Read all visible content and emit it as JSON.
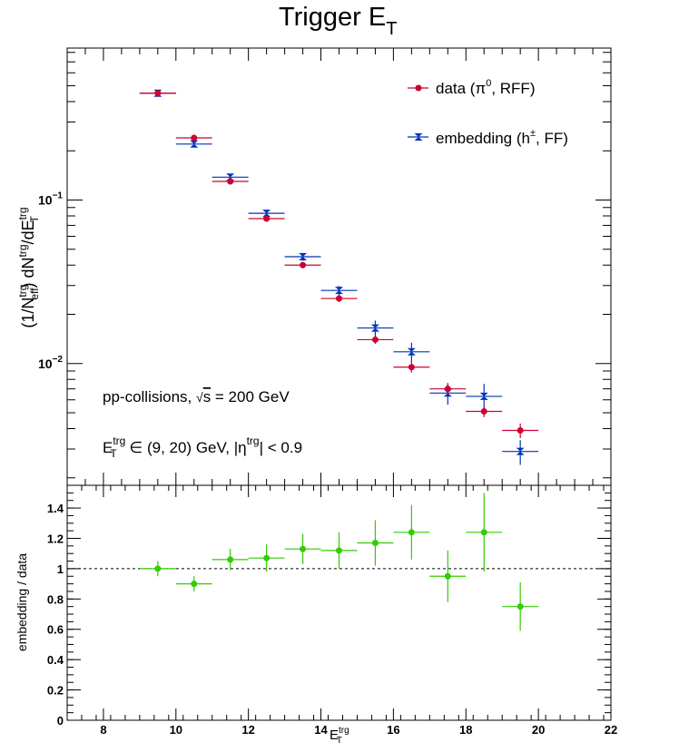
{
  "chart_data": [
    {
      "type": "scatter",
      "title": "Trigger E",
      "title_sub": "T",
      "ylabel": "(1/N_eff^trg) dN^trg/dE_T^trg",
      "yscale": "log",
      "ylim": [
        0.0018,
        0.85
      ],
      "xlim": [
        7,
        22
      ],
      "ytick_labels": [
        {
          "v": 0.1,
          "base": "10",
          "exp": "−1"
        },
        {
          "v": 0.01,
          "base": "10",
          "exp": "−2"
        }
      ],
      "legend_position": "top-right",
      "series": [
        {
          "name": "data (π⁰, RFF)",
          "color": "#cc0033",
          "marker": "circle",
          "x": [
            9.5,
            10.5,
            11.5,
            12.5,
            13.5,
            14.5,
            15.5,
            16.5,
            17.5,
            18.5,
            19.5
          ],
          "xerr": 0.5,
          "y": [
            0.45,
            0.24,
            0.13,
            0.077,
            0.04,
            0.025,
            0.014,
            0.0095,
            0.007,
            0.0051,
            0.0039
          ],
          "yerr": [
            0.012,
            0.008,
            0.005,
            0.003,
            0.0015,
            0.0012,
            0.0008,
            0.0007,
            0.0005,
            0.0004,
            0.0004
          ]
        },
        {
          "name": "embedding (h±, FF)",
          "color": "#0033bb",
          "marker": "star",
          "x": [
            9.5,
            10.5,
            11.5,
            12.5,
            13.5,
            14.5,
            15.5,
            16.5,
            17.5,
            18.5,
            19.5
          ],
          "xerr": 0.5,
          "y": [
            0.45,
            0.22,
            0.138,
            0.083,
            0.045,
            0.028,
            0.0165,
            0.0118,
            0.0066,
            0.0063,
            0.0029
          ],
          "yerr": [
            0.015,
            0.009,
            0.006,
            0.004,
            0.0025,
            0.0018,
            0.0018,
            0.0016,
            0.001,
            0.0012,
            0.0005
          ]
        }
      ],
      "annotations": [
        "pp-collisions, √s = 200 GeV",
        "E_T^trg ∈ (9, 20) GeV, |η^trg| < 0.9"
      ]
    },
    {
      "type": "scatter",
      "ylabel": "embedding / data",
      "xlabel": "E_T^trg",
      "xlim": [
        7,
        22
      ],
      "ylim": [
        0,
        1.55
      ],
      "xticks": [
        8,
        10,
        12,
        14,
        16,
        18,
        20,
        22
      ],
      "yticks": [
        0,
        0.2,
        0.4,
        0.6,
        0.8,
        1,
        1.2,
        1.4
      ],
      "reference_line": 1,
      "series": [
        {
          "color": "#33cc00",
          "marker": "circle",
          "x": [
            9.5,
            10.5,
            11.5,
            12.5,
            13.5,
            14.5,
            15.5,
            16.5,
            17.5,
            18.5,
            19.5
          ],
          "xerr": 0.5,
          "y": [
            1.0,
            0.9,
            1.06,
            1.07,
            1.13,
            1.12,
            1.17,
            1.24,
            0.95,
            1.24,
            0.75
          ],
          "yerr": [
            0.05,
            0.05,
            0.07,
            0.09,
            0.1,
            0.12,
            0.15,
            0.18,
            0.17,
            0.26,
            0.16
          ]
        }
      ]
    }
  ]
}
